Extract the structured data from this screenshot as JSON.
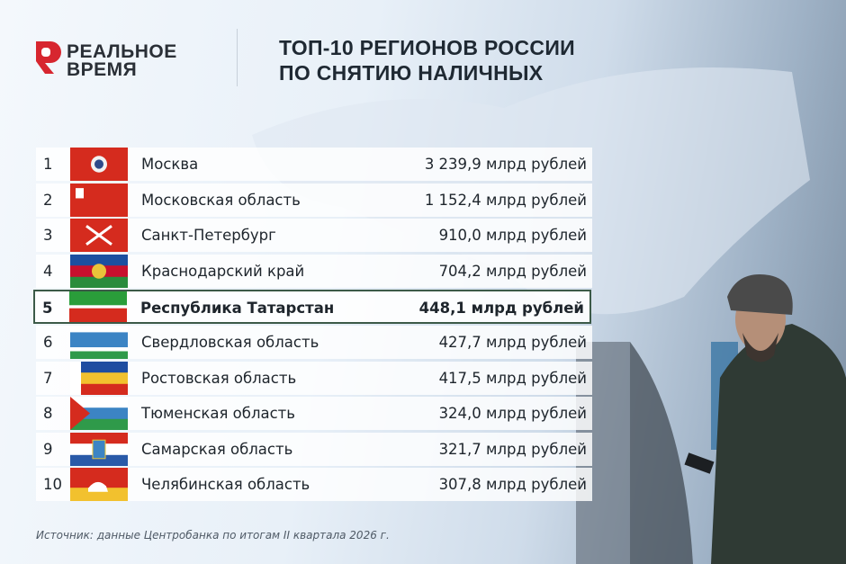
{
  "logo": {
    "line1": "РЕАЛЬНОЕ",
    "line2": "ВРЕМЯ"
  },
  "title": {
    "line1": "ТОП-10 РЕГИОНОВ РОССИИ",
    "line2": "ПО СНЯТИЮ НАЛИЧНЫХ"
  },
  "table": {
    "rows": [
      [
        "1",
        "Москва",
        "3 239,9 млрд рублей"
      ],
      [
        "2",
        "Московская область",
        "1 152,4 млрд рублей"
      ],
      [
        "3",
        "Санкт-Петербург",
        "910,0 млрд рублей"
      ],
      [
        "4",
        "Краснодарский край",
        "704,2 млрд рублей"
      ],
      [
        "5",
        "Республика Татарстан",
        "448,1 млрд рублей"
      ],
      [
        "6",
        "Свердловская область",
        "427,7 млрд рублей"
      ],
      [
        "7",
        "Ростовская область",
        "417,5 млрд рублей"
      ],
      [
        "8",
        "Тюменская область",
        "324,0 млрд рублей"
      ],
      [
        "9",
        "Самарская область",
        "321,7 млрд рублей"
      ],
      [
        "10",
        "Челябинская область",
        "307,8 млрд рублей"
      ]
    ]
  },
  "source": "Источник: данные Центробанка по итогам II квартала 2026 г."
}
